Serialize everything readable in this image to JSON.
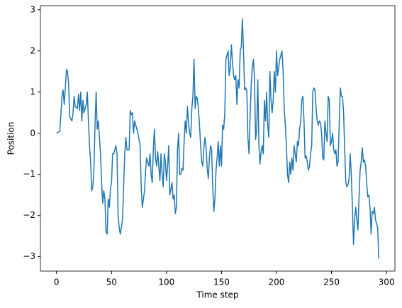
{
  "chart_data": {
    "type": "line",
    "xlabel": "Time step",
    "ylabel": "Position",
    "color": "#1f77b4",
    "x": [
      0,
      3,
      5,
      6,
      7,
      8,
      9,
      10,
      11,
      12,
      14,
      15,
      16,
      17,
      19,
      20,
      21,
      22,
      23,
      24,
      25,
      27,
      28,
      29,
      30,
      31,
      32,
      33,
      34,
      35,
      36,
      37,
      38,
      39,
      40,
      41,
      42,
      43,
      44,
      45,
      46,
      47,
      48,
      49,
      50,
      51,
      52,
      54,
      55,
      56,
      57,
      58,
      60,
      62,
      63,
      64,
      66,
      67,
      68,
      69,
      70,
      71,
      73,
      74,
      76,
      77,
      78,
      80,
      81,
      82,
      84,
      85,
      86,
      87,
      88,
      89,
      90,
      91,
      92,
      94,
      95,
      96,
      97,
      98,
      99,
      100,
      101,
      102,
      103,
      105,
      106,
      107,
      108,
      109,
      110,
      111,
      112,
      113,
      114,
      115,
      116,
      117,
      118,
      119,
      120,
      121,
      122,
      123,
      124,
      125,
      126,
      127,
      128,
      129,
      130,
      131,
      132,
      133,
      134,
      135,
      136,
      137,
      138,
      139,
      140,
      141,
      142,
      143,
      144,
      145,
      146,
      147,
      148,
      149,
      150,
      151,
      152,
      153,
      154,
      155,
      156,
      157,
      158,
      159,
      160,
      161,
      162,
      163,
      164,
      165,
      166,
      167,
      168,
      169,
      170,
      171,
      172,
      173,
      174,
      175,
      176,
      177,
      178,
      179,
      180,
      181,
      182,
      183,
      184,
      185,
      186,
      187,
      188,
      189,
      190,
      191,
      192,
      193,
      194,
      195,
      196,
      197,
      198,
      199,
      200,
      201,
      202,
      203,
      204,
      205,
      206,
      207,
      208,
      209,
      210,
      211,
      212,
      213,
      214,
      215,
      216,
      217,
      218,
      219,
      220,
      221,
      222,
      223,
      224,
      225,
      226,
      227,
      228,
      229,
      230,
      231,
      232,
      233,
      234,
      235,
      236,
      237,
      238,
      239,
      240,
      241,
      242,
      243,
      244,
      245,
      246,
      247,
      248,
      249,
      250,
      251,
      252,
      253,
      254,
      255,
      256,
      257,
      258,
      259,
      260,
      261,
      262,
      263,
      264,
      265,
      266,
      267,
      268,
      269,
      270,
      271,
      272,
      273,
      274,
      275,
      276,
      277,
      278,
      279,
      280,
      281,
      282,
      283,
      284,
      285,
      286,
      287,
      288,
      289,
      290,
      291,
      292,
      293
    ],
    "values": [
      0,
      0.05,
      0.9,
      1.05,
      0.7,
      1.1,
      1.55,
      1.5,
      1.2,
      0.4,
      0.3,
      0.5,
      0.9,
      0.65,
      0.6,
      0.95,
      0.55,
      1.0,
      0.3,
      0.8,
      0.5,
      0.7,
      1.0,
      0.3,
      -0.3,
      -0.7,
      -1.4,
      -1.3,
      -0.9,
      0.2,
      1.0,
      0.1,
      0.3,
      -0.1,
      -0.5,
      -1.2,
      -1.7,
      -1.4,
      -1.6,
      -2.4,
      -2.45,
      -1.6,
      -1.8,
      -1.35,
      -1.2,
      -0.5,
      -0.5,
      -0.3,
      -0.5,
      -2.0,
      -2.3,
      -2.45,
      -2.1,
      -0.5,
      -0.1,
      -0.4,
      -0.4,
      0.55,
      0.45,
      0.5,
      0.0,
      0.3,
      0.1,
      0.0,
      -0.3,
      -1.3,
      -1.8,
      -1.4,
      -0.9,
      -0.6,
      -0.8,
      -0.5,
      -1.0,
      -1.2,
      -0.4,
      0.1,
      -0.6,
      -0.8,
      -0.45,
      -1.15,
      -0.5,
      -1.0,
      -1.3,
      -0.5,
      -0.7,
      -1.15,
      -0.8,
      -0.3,
      -1.5,
      -1.2,
      -1.6,
      -1.5,
      -1.95,
      -1.8,
      -0.4,
      0.0,
      -1.0,
      -1.0,
      -0.85,
      -0.9,
      -0.2,
      0.3,
      0.0,
      0.65,
      0.25,
      0.0,
      -0.1,
      0.6,
      0.9,
      1.8,
      0.6,
      0.9,
      0.85,
      0.6,
      0.2,
      -0.3,
      -0.7,
      -0.8,
      -0.35,
      -0.1,
      -0.35,
      -0.85,
      -1.1,
      -0.6,
      -0.3,
      -0.4,
      -1.3,
      -1.9,
      -1.6,
      -0.9,
      -0.6,
      -0.2,
      -0.8,
      -0.3,
      -0.8,
      0.2,
      0.1,
      0.5,
      1.8,
      1.9,
      2.0,
      1.4,
      1.6,
      2.15,
      1.7,
      1.4,
      1.3,
      1.4,
      0.7,
      1.3,
      1.1,
      2.0,
      2.1,
      2.78,
      2.0,
      1.05,
      1.1,
      1.05,
      -0.1,
      -0.5,
      0.4,
      1.2,
      1.6,
      1.8,
      1.3,
      -0.15,
      0.1,
      1.3,
      -0.3,
      -0.75,
      -0.45,
      -0.3,
      -0.5,
      0.8,
      0.3,
      1.0,
      0.2,
      -0.1,
      1.5,
      0.8,
      0.5,
      0.8,
      1.5,
      1.0,
      2.0,
      1.4,
      1.6,
      1.8,
      1.9,
      2.0,
      1.5,
      0.6,
      0.2,
      -0.3,
      -1.0,
      -1.2,
      -0.7,
      -1.0,
      -0.6,
      -0.9,
      -0.3,
      -0.5,
      -0.7,
      -0.2,
      -0.3,
      0.1,
      0.3,
      0.8,
      0.9,
      0.3,
      -0.6,
      -0.55,
      -0.7,
      -0.9,
      -0.8,
      -0.5,
      -0.3,
      1.0,
      1.1,
      1.05,
      0.6,
      0.3,
      0.2,
      0.3,
      0.25,
      0.0,
      -0.6,
      -0.65,
      0.3,
      0.0,
      -0.2,
      0.9,
      0.8,
      -0.3,
      -0.2,
      0.0,
      -0.4,
      -0.5,
      -0.4,
      -0.8,
      -0.7,
      0.2,
      1.1,
      0.9,
      0.9,
      0.5,
      -0.4,
      -1.2,
      -1.3,
      -1.25,
      -1.1,
      -0.5,
      -1.0,
      -1.8,
      -2.7,
      -2.1,
      -1.8,
      -2.1,
      -2.35,
      -1.6,
      -0.9,
      -0.7,
      -0.35,
      -0.7,
      -0.65,
      -0.8,
      -1.2,
      -1.55,
      -1.5,
      -1.8,
      -2.45,
      -1.9,
      -1.95,
      -1.8,
      -2.1,
      -2.2,
      -2.3,
      -3.05
    ],
    "xlim": [
      -14.65,
      307.65
    ],
    "xticks": [
      0,
      50,
      100,
      150,
      200,
      250,
      300
    ],
    "ylim": [
      -3.35,
      3.1
    ],
    "yticks": [
      {
        "value": -3,
        "label": "−3"
      },
      {
        "value": -2,
        "label": "−2"
      },
      {
        "value": -1,
        "label": "−1"
      },
      0,
      1,
      2,
      3
    ]
  }
}
